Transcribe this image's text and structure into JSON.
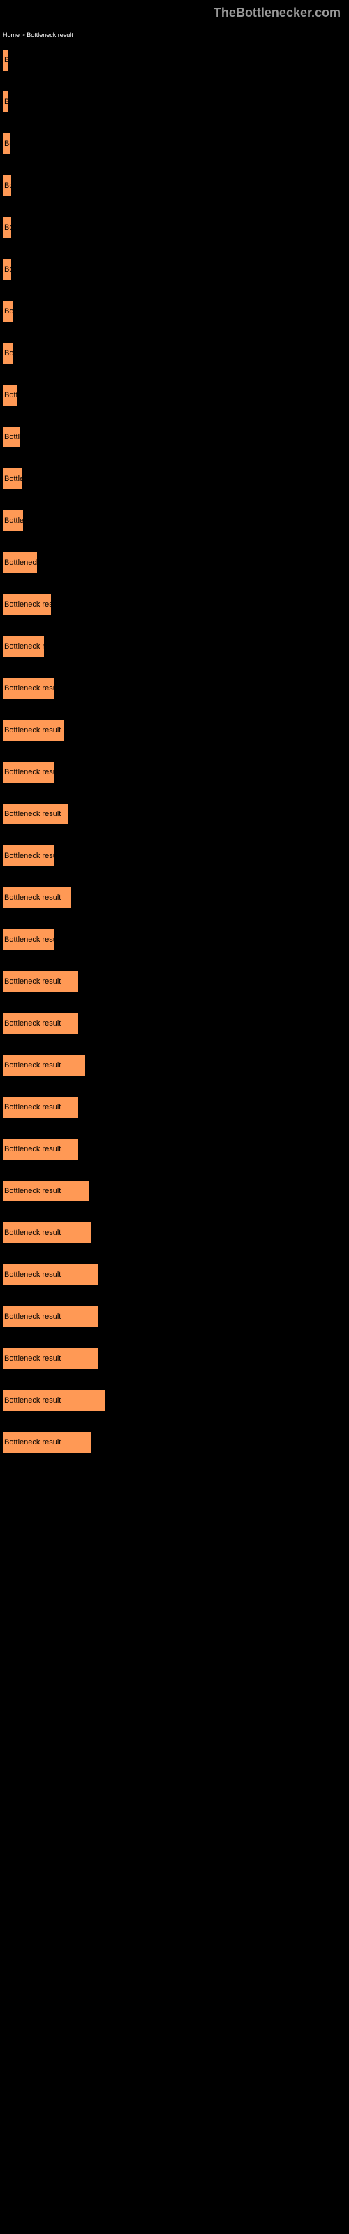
{
  "header": {
    "title": "TheBottlenecker.com"
  },
  "breadcrumb": {
    "text": "Home > Bottleneck result"
  },
  "chart": {
    "type": "bar",
    "bar_color": "#ff9955",
    "background_color": "#000000",
    "text_color": "#ffffff",
    "label_fontsize": 11,
    "max_width": 490,
    "bars": [
      {
        "label": "Bottleneck result",
        "width_percent": 1.5,
        "sublabel": ""
      },
      {
        "label": "Bottleneck result",
        "width_percent": 1.5,
        "sublabel": ""
      },
      {
        "label": "Bottleneck result",
        "width_percent": 2,
        "sublabel": ""
      },
      {
        "label": "Bottleneck result",
        "width_percent": 2.5,
        "sublabel": ""
      },
      {
        "label": "Bottleneck result",
        "width_percent": 2.5,
        "sublabel": ""
      },
      {
        "label": "Bottleneck result",
        "width_percent": 2.5,
        "sublabel": ""
      },
      {
        "label": "Bottleneck result",
        "width_percent": 3,
        "sublabel": ""
      },
      {
        "label": "Bottleneck result",
        "width_percent": 3,
        "sublabel": ""
      },
      {
        "label": "Bottleneck result",
        "width_percent": 4,
        "sublabel": ""
      },
      {
        "label": "Bottleneck result",
        "width_percent": 5,
        "sublabel": ""
      },
      {
        "label": "Bottleneck result",
        "width_percent": 5.5,
        "sublabel": ""
      },
      {
        "label": "Bottleneck result",
        "width_percent": 6,
        "sublabel": ""
      },
      {
        "label": "Bottleneck result",
        "width_percent": 10,
        "sublabel": ""
      },
      {
        "label": "Bottleneck result",
        "width_percent": 14,
        "sublabel": ""
      },
      {
        "label": "Bottleneck result",
        "width_percent": 12,
        "sublabel": ""
      },
      {
        "label": "Bottleneck result",
        "width_percent": 15,
        "sublabel": ""
      },
      {
        "label": "Bottleneck result",
        "width_percent": 18,
        "sublabel": ""
      },
      {
        "label": "Bottleneck result",
        "width_percent": 15,
        "sublabel": ""
      },
      {
        "label": "Bottleneck result",
        "width_percent": 19,
        "sublabel": ""
      },
      {
        "label": "Bottleneck result",
        "width_percent": 15,
        "sublabel": ""
      },
      {
        "label": "Bottleneck result",
        "width_percent": 20,
        "sublabel": ""
      },
      {
        "label": "Bottleneck result",
        "width_percent": 15,
        "sublabel": ""
      },
      {
        "label": "Bottleneck result",
        "width_percent": 22,
        "sublabel": ""
      },
      {
        "label": "Bottleneck result",
        "width_percent": 22,
        "sublabel": ""
      },
      {
        "label": "Bottleneck result",
        "width_percent": 24,
        "sublabel": ""
      },
      {
        "label": "Bottleneck result",
        "width_percent": 22,
        "sublabel": ""
      },
      {
        "label": "Bottleneck result",
        "width_percent": 22,
        "sublabel": ""
      },
      {
        "label": "Bottleneck result",
        "width_percent": 25,
        "sublabel": ""
      },
      {
        "label": "Bottleneck result",
        "width_percent": 26,
        "sublabel": ""
      },
      {
        "label": "Bottleneck result",
        "width_percent": 28,
        "sublabel": ""
      },
      {
        "label": "Bottleneck result",
        "width_percent": 28,
        "sublabel": ""
      },
      {
        "label": "Bottleneck result",
        "width_percent": 28,
        "sublabel": ""
      },
      {
        "label": "Bottleneck result",
        "width_percent": 30,
        "sublabel": ""
      },
      {
        "label": "Bottleneck result",
        "width_percent": 26,
        "sublabel": ""
      }
    ]
  }
}
